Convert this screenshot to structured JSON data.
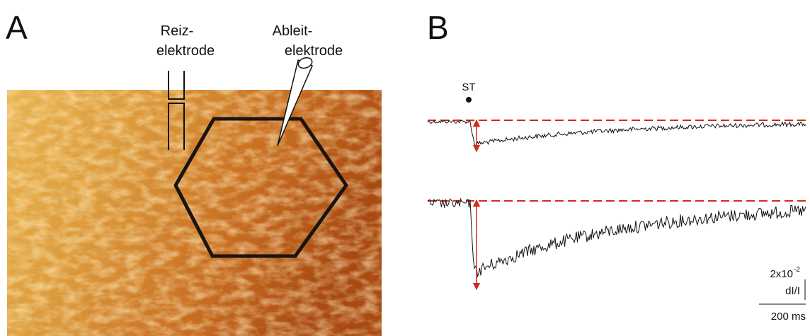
{
  "panel_a": {
    "label": "A",
    "stimulus_electrode": [
      "Reiz-",
      "elektrode"
    ],
    "recording_electrode": [
      "Ableit-",
      "elektrode"
    ]
  },
  "panel_b": {
    "label": "B",
    "stimulus_marker": "ST",
    "scale_bar": {
      "amplitude_base": "2x10",
      "amplitude_exponent": "-2",
      "amplitude_unit": "dI/I",
      "time": "200 ms"
    }
  }
}
